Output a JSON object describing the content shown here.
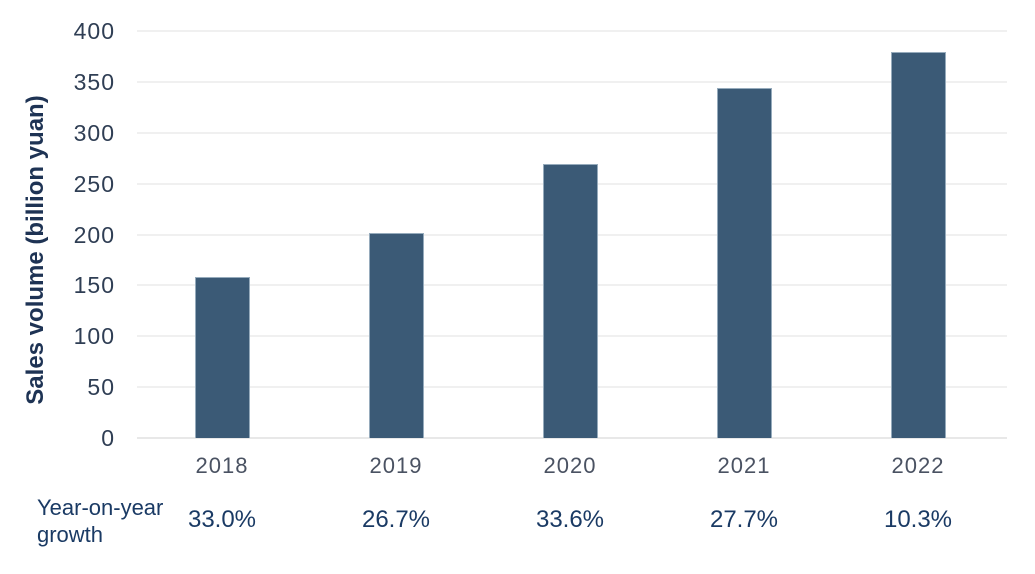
{
  "chart_data": {
    "type": "bar",
    "title": "",
    "categories": [
      "2018",
      "2019",
      "2020",
      "2021",
      "2022"
    ],
    "values": [
      158,
      201,
      269,
      344,
      379
    ],
    "xlabel": "",
    "ylabel": "Sales volume (billion yuan)",
    "ylim": [
      0,
      400
    ],
    "yticks": [
      0,
      50,
      100,
      150,
      200,
      250,
      300,
      350,
      400
    ],
    "grid": true,
    "legend": false,
    "growth_row": {
      "label": "Year-on-year growth",
      "values": [
        "33.0%",
        "26.7%",
        "33.6%",
        "27.7%",
        "10.3%"
      ]
    },
    "colors": {
      "bar": "#3b5a76",
      "bar_border": "#96abbc",
      "grid": "#e2e2e2",
      "grid_base": "#d2d2d2",
      "tick_text": "#2f3e54",
      "year_text": "#4a5262",
      "pct_text": "#1a3a64",
      "axis_title_text": "#1e3354"
    }
  }
}
